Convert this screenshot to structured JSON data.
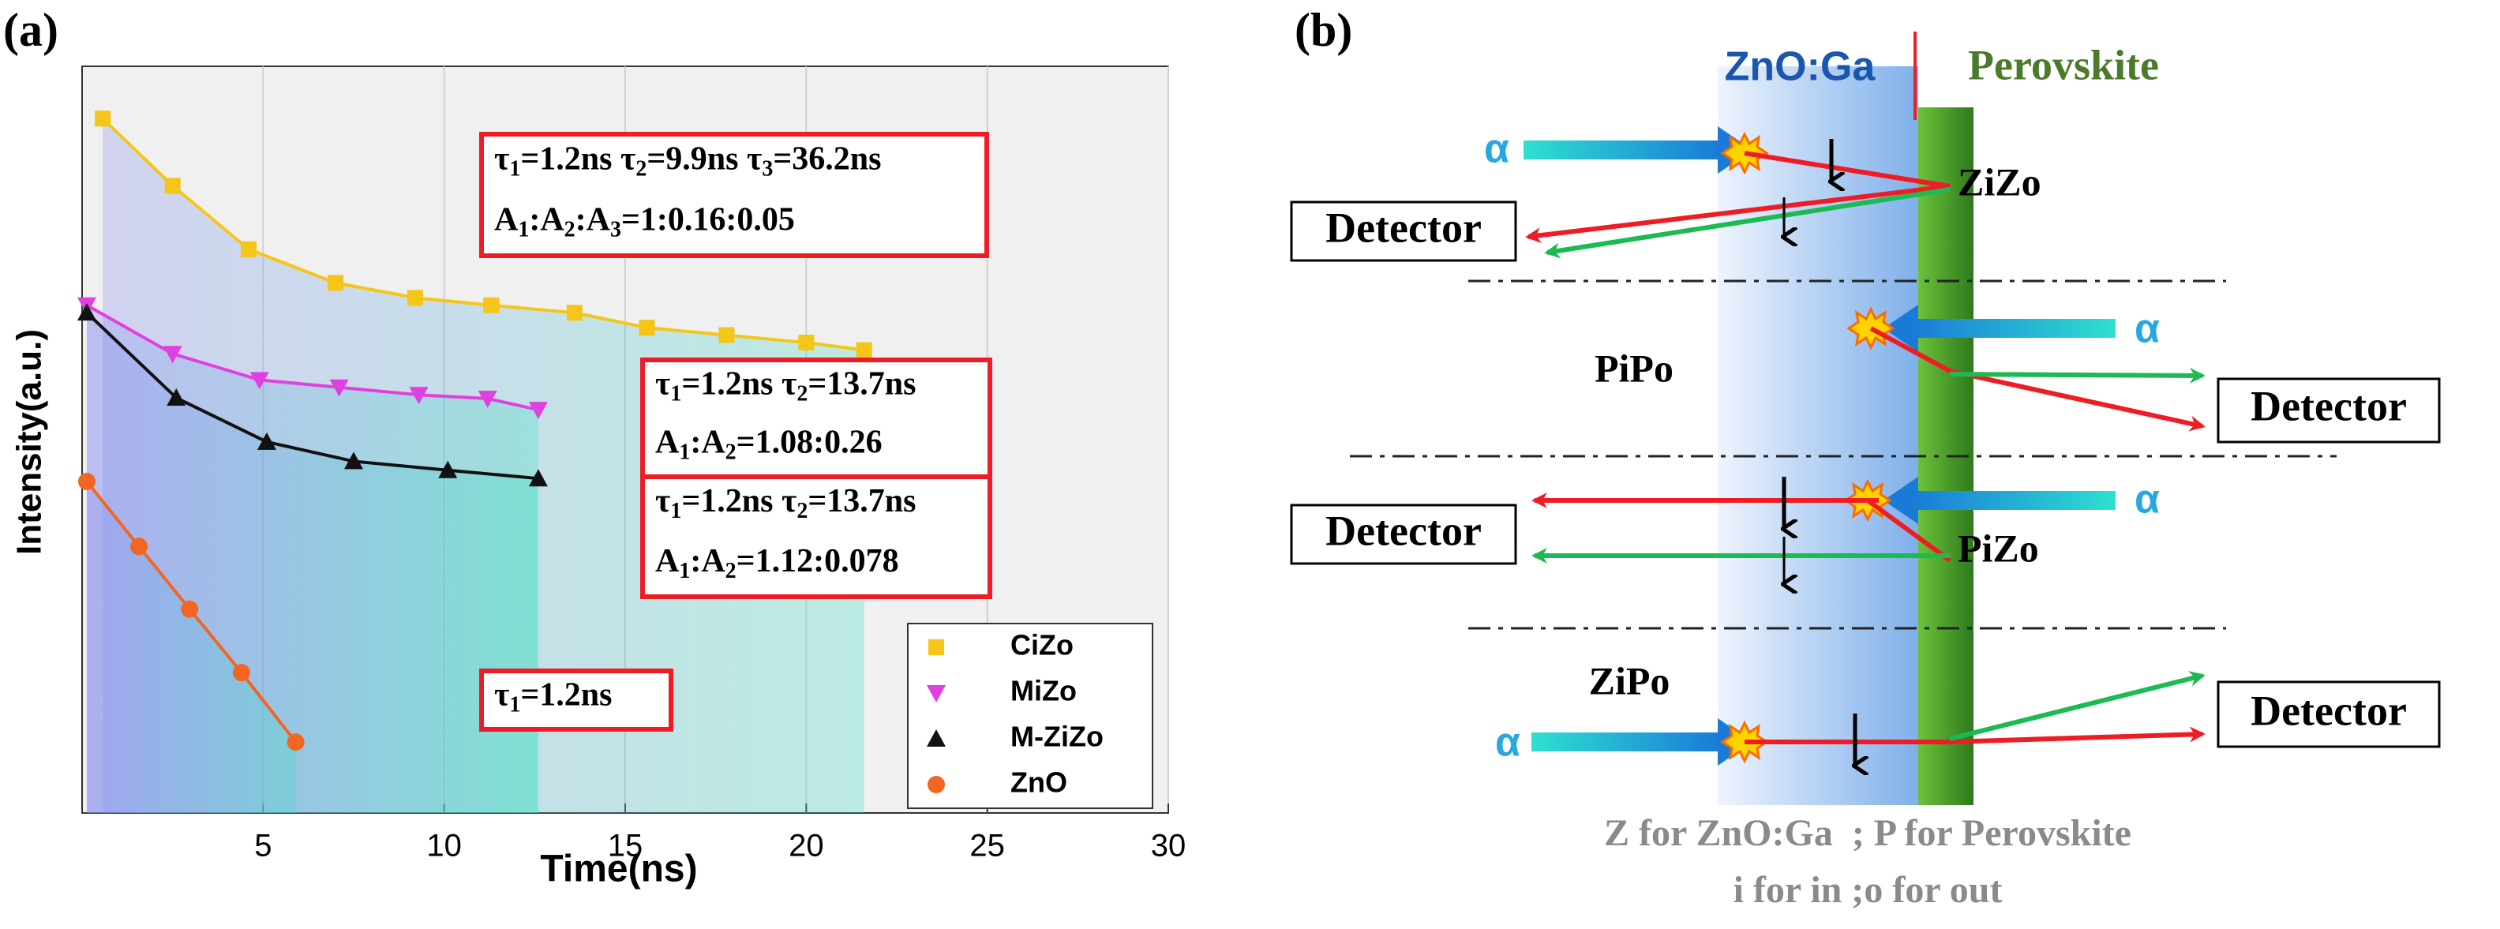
{
  "panels": [
    "(a)",
    "(b)"
  ],
  "chart_data": {
    "type": "line",
    "xlabel": "Time(ns)",
    "ylabel": "Intensity(a.u.)",
    "xlim": [
      0,
      30
    ],
    "xticks": [
      5,
      10,
      15,
      20,
      25,
      30
    ],
    "ylim": [
      0,
      1
    ],
    "grid": true,
    "legend": "lower right",
    "series": [
      {
        "name": "CiZo",
        "color": "#f5c518",
        "marker": "square",
        "x": [
          0.57,
          2.5,
          4.6,
          7.0,
          9.2,
          11.3,
          13.6,
          15.6,
          17.8,
          20.0,
          21.6
        ],
        "values": [
          0.93,
          0.84,
          0.755,
          0.71,
          0.69,
          0.68,
          0.67,
          0.65,
          0.64,
          0.63,
          0.62
        ]
      },
      {
        "name": "MiZo",
        "color": "#e040e0",
        "marker": "triangle-down",
        "x": [
          0.13,
          2.5,
          4.9,
          7.1,
          9.3,
          11.2,
          12.6
        ],
        "values": [
          0.68,
          0.615,
          0.58,
          0.57,
          0.56,
          0.555,
          0.54
        ]
      },
      {
        "name": "M-ZiZo",
        "color": "#111111",
        "marker": "triangle-up",
        "x": [
          0.13,
          2.6,
          5.1,
          7.5,
          10.1,
          12.6
        ],
        "values": [
          0.67,
          0.556,
          0.497,
          0.471,
          0.459,
          0.448
        ]
      },
      {
        "name": "ZnO",
        "color": "#f26522",
        "marker": "circle",
        "x": [
          0.13,
          1.57,
          2.97,
          4.4,
          5.9
        ],
        "values": [
          0.444,
          0.357,
          0.273,
          0.188,
          0.095
        ]
      }
    ],
    "annotations": [
      {
        "lines": [
          [
            "τ",
            "1",
            "=1.2ns τ",
            "2",
            "=9.9ns τ",
            "3",
            "=36.2ns"
          ],
          [
            "A",
            "1",
            ":A",
            "2",
            ":A",
            "3",
            "=1:0.16:0.05"
          ]
        ]
      },
      {
        "lines": [
          [
            "τ",
            "1",
            "=1.2ns τ",
            "2",
            "=13.7ns"
          ],
          [
            "A",
            "1",
            ":A",
            "2",
            "=1.08:0.26"
          ]
        ]
      },
      {
        "lines": [
          [
            "τ",
            "1",
            "=1.2ns τ",
            "2",
            "=13.7ns"
          ],
          [
            "A",
            "1",
            ":A",
            "2",
            "=1.12:0.078"
          ]
        ]
      },
      {
        "lines": [
          [
            "τ",
            "1",
            "=1.2ns"
          ]
        ]
      }
    ]
  },
  "diagram": {
    "layers": [
      "ZnO:Ga",
      "Perovskite"
    ],
    "configs": [
      {
        "name": "ZiZo",
        "alpha": "α",
        "detector": "Detector"
      },
      {
        "name": "PiPo",
        "alpha": "α",
        "detector": "Detector"
      },
      {
        "name": "PiZo",
        "alpha": "α",
        "detector": "Detector"
      },
      {
        "name": "ZiPo",
        "alpha": "α",
        "detector": "Detector"
      }
    ],
    "notes": [
      "Z for ZnO:Ga  ; P for Perovskite",
      "i for in ;o for out"
    ]
  }
}
